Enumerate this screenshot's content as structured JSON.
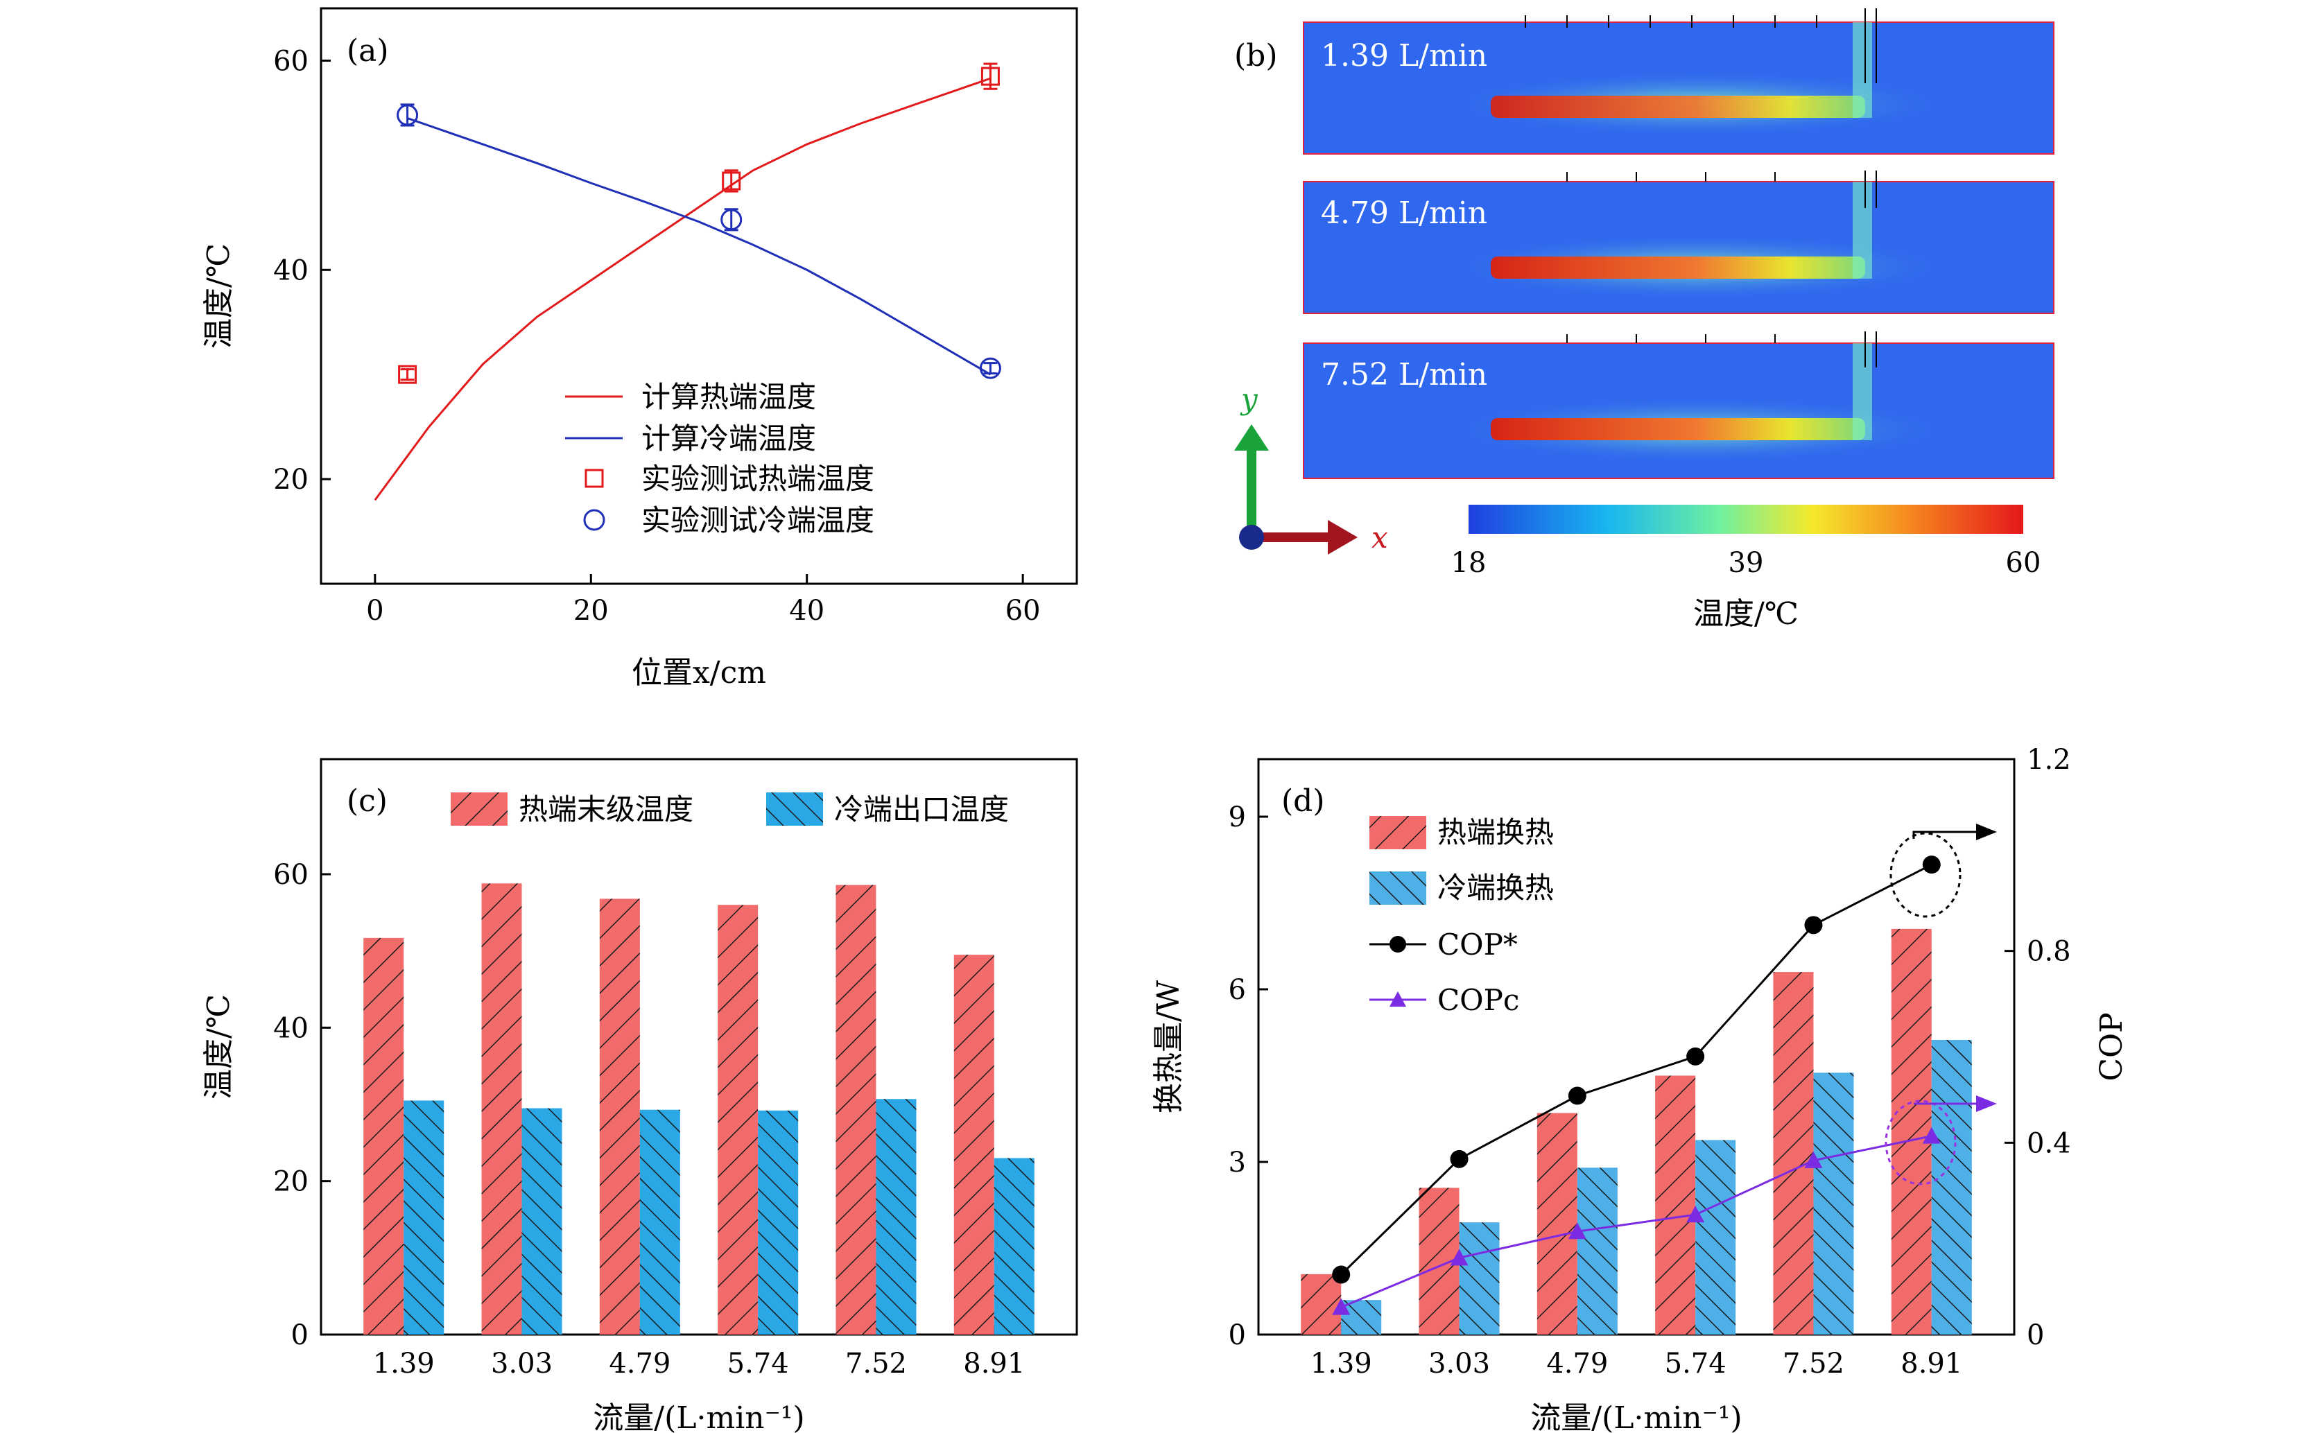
{
  "chart_data": [
    {
      "panel": "(a)",
      "type": "line",
      "xlabel": "位置x/cm",
      "ylabel": "温度/℃",
      "xlim": [
        -5,
        65
      ],
      "ylim": [
        10,
        65
      ],
      "xticks": [
        0,
        20,
        40,
        60
      ],
      "yticks": [
        20,
        40,
        60
      ],
      "series": [
        {
          "name": "计算热端温度",
          "kind": "line",
          "color": "#e31a1c",
          "x": [
            0,
            5,
            10,
            15,
            20,
            25,
            30,
            35,
            40,
            45,
            50,
            57
          ],
          "y": [
            18,
            25,
            31,
            35.5,
            39,
            42.5,
            46,
            49.5,
            52,
            54,
            55.8,
            58.3
          ]
        },
        {
          "name": "计算冷端温度",
          "kind": "line",
          "color": "#1f2fb8",
          "x": [
            3,
            10,
            15,
            20,
            25,
            30,
            35,
            40,
            45,
            50,
            57
          ],
          "y": [
            54.5,
            52,
            50.2,
            48.3,
            46.5,
            44.6,
            42.4,
            40,
            37.2,
            34.2,
            30
          ]
        },
        {
          "name": "实验测试热端温度",
          "kind": "scatter",
          "marker": "square",
          "color": "#e31a1c",
          "x": [
            3,
            33,
            57
          ],
          "y": [
            30,
            48.5,
            58.5
          ],
          "err": [
            0.5,
            1,
            1.2
          ]
        },
        {
          "name": "实验测试冷端温度",
          "kind": "scatter",
          "marker": "circle",
          "color": "#1f2fb8",
          "x": [
            3,
            33,
            57
          ],
          "y": [
            54.8,
            44.8,
            30.6
          ],
          "err": [
            1,
            1,
            0.5
          ]
        }
      ]
    },
    {
      "panel": "(b)",
      "type": "heatmap",
      "flow_labels": [
        "1.39 L/min",
        "4.79 L/min",
        "7.52 L/min"
      ],
      "colorbar_ticks": [
        18,
        39,
        60
      ],
      "colorbar_label": "温度/℃",
      "axis_x": "x",
      "axis_y": "y"
    },
    {
      "panel": "(c)",
      "type": "bar",
      "xlabel": "流量/(L·min⁻¹)",
      "ylabel": "温度/℃",
      "ylim": [
        0,
        75
      ],
      "yticks": [
        0,
        20,
        40,
        60
      ],
      "categories": [
        "1.39",
        "3.03",
        "4.79",
        "5.74",
        "7.52",
        "8.91"
      ],
      "series": [
        {
          "name": "热端末级温度",
          "color": "#f26b6b",
          "values": [
            51.7,
            58.8,
            56.8,
            56,
            58.6,
            49.5
          ]
        },
        {
          "name": "冷端出口温度",
          "color": "#2ba7e6",
          "values": [
            30.5,
            29.5,
            29.3,
            29.2,
            30.7,
            23
          ]
        }
      ]
    },
    {
      "panel": "(d)",
      "type": "bar",
      "xlabel": "流量/(L·min⁻¹)",
      "ylabel": "换热量/W",
      "y2label": "COP",
      "ylim": [
        0,
        10
      ],
      "yticks": [
        0,
        3,
        6,
        9
      ],
      "y2lim": [
        0,
        1.2
      ],
      "y2ticks": [
        0,
        0.4,
        0.8,
        1.2
      ],
      "categories": [
        "1.39",
        "3.03",
        "4.79",
        "5.74",
        "7.52",
        "8.91"
      ],
      "series": [
        {
          "name": "热端换热",
          "kind": "bar",
          "color": "#f26b6b",
          "values": [
            1.05,
            2.55,
            3.85,
            4.5,
            6.3,
            7.05
          ]
        },
        {
          "name": "冷端换热",
          "kind": "bar",
          "color": "#4fb0e8",
          "values": [
            0.6,
            1.95,
            2.9,
            3.38,
            4.55,
            5.12
          ]
        },
        {
          "name": "COP*",
          "kind": "line",
          "axis": "right",
          "marker": "circle",
          "color": "#000000",
          "values": [
            0.125,
            0.366,
            0.498,
            0.58,
            0.854,
            0.98
          ]
        },
        {
          "name": "COPc",
          "kind": "line",
          "axis": "right",
          "marker": "triangle",
          "color": "#7b2be2",
          "values": [
            0.057,
            0.16,
            0.215,
            0.25,
            0.363,
            0.414
          ]
        }
      ]
    }
  ]
}
